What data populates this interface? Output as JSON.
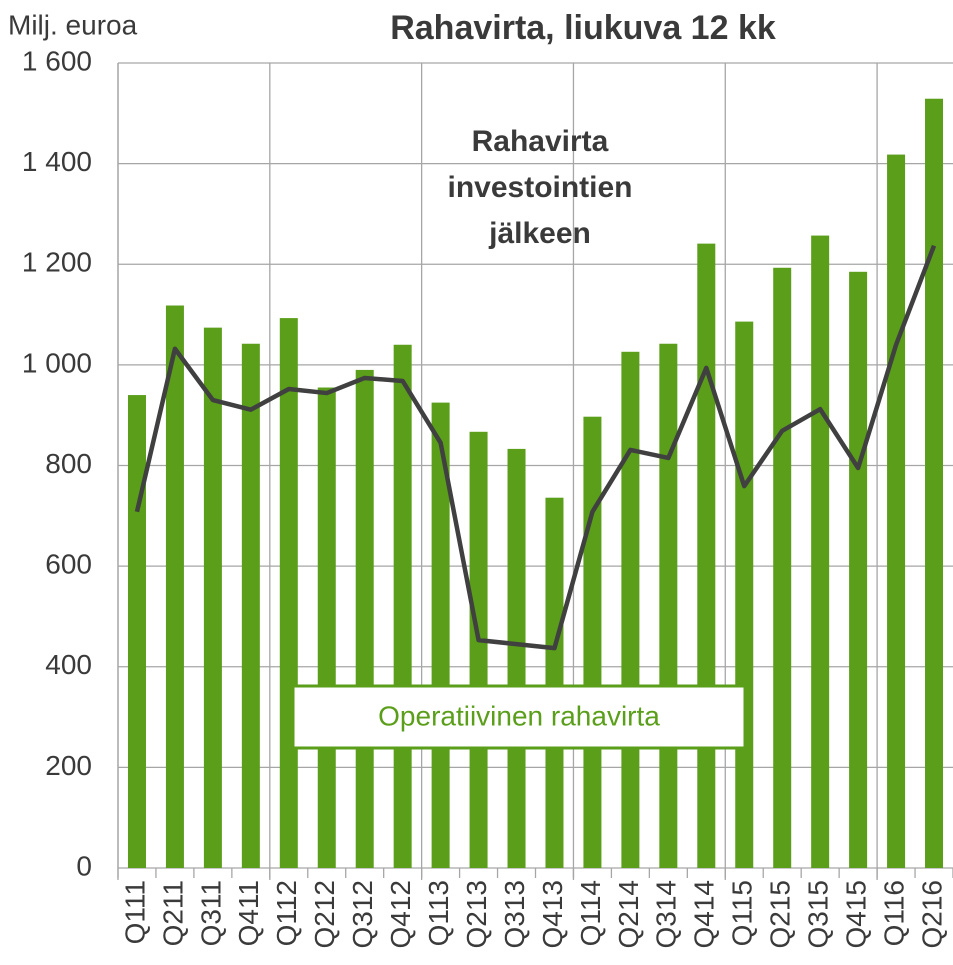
{
  "chart_data": {
    "type": "bar_line",
    "title": "Rahavirta, liukuva 12 kk",
    "y_axis_label": "Milj. euroa",
    "categories": [
      "Q111",
      "Q211",
      "Q311",
      "Q411",
      "Q112",
      "Q212",
      "Q312",
      "Q412",
      "Q113",
      "Q213",
      "Q313",
      "Q413",
      "Q114",
      "Q214",
      "Q314",
      "Q414",
      "Q115",
      "Q215",
      "Q315",
      "Q415",
      "Q116",
      "Q216"
    ],
    "series": [
      {
        "name": "Operatiivinen rahavirta",
        "type": "bar",
        "color": "#5a9e1a",
        "values": [
          940,
          1118,
          1074,
          1042,
          1093,
          955,
          990,
          1040,
          925,
          867,
          833,
          736,
          897,
          1026,
          1042,
          1241,
          1086,
          1193,
          1257,
          1185,
          1418,
          1529
        ]
      },
      {
        "name": "Rahavirta investointien jälkeen",
        "type": "line",
        "color": "#404040",
        "values": [
          708,
          1032,
          930,
          911,
          952,
          944,
          974,
          968,
          845,
          453,
          445,
          437,
          708,
          831,
          815,
          994,
          759,
          869,
          912,
          795,
          1040,
          1237
        ]
      }
    ],
    "ylim": [
      0,
      1600
    ],
    "yticks": [
      0,
      200,
      400,
      600,
      800,
      {
        "value": 1000,
        "label": "1 000"
      },
      {
        "value": 1200,
        "label": "1 200"
      },
      {
        "value": 1400,
        "label": "1 400"
      },
      {
        "value": 1600,
        "label": "1 600"
      }
    ],
    "grid": true
  }
}
